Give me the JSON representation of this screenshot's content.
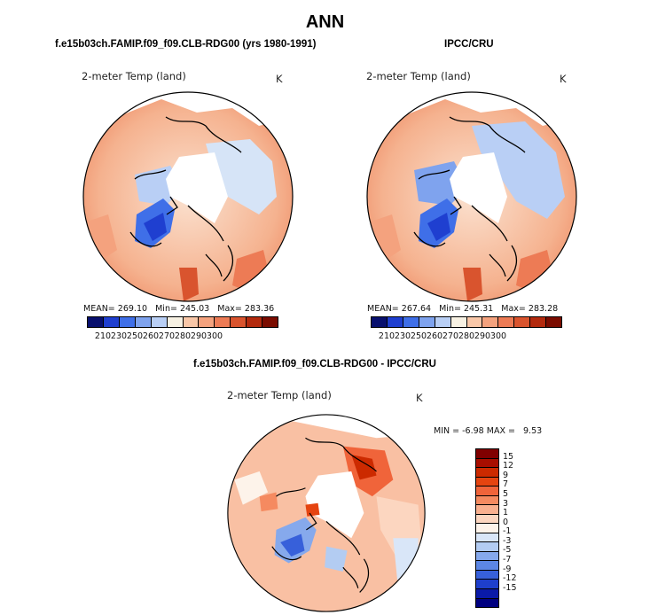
{
  "title": "ANN",
  "left_panel": {
    "case_label": "f.e15b03ch.FAMIP.f09_f09.CLB-RDG00 (yrs 1980-1991)",
    "variable": "2-meter Temp (land)",
    "units": "K",
    "stats": {
      "mean_label": "MEAN=",
      "mean": "269.10",
      "min_label": "Min=",
      "min": "245.03",
      "max_label": "Max=",
      "max": "283.36"
    }
  },
  "right_panel": {
    "case_label": "IPCC/CRU",
    "variable": "2-meter Temp (land)",
    "units": "K",
    "stats": {
      "mean_label": "MEAN=",
      "mean": "267.64",
      "min_label": "Min=",
      "min": "245.31",
      "max_label": "Max=",
      "max": "283.28"
    }
  },
  "diff_panel": {
    "case_label": "f.e15b03ch.FAMIP.f09_f09.CLB-RDG00 - IPCC/CRU",
    "variable": "2-meter Temp (land)",
    "units": "K",
    "stats": {
      "min_label": "MIN =",
      "min": "-6.98",
      "max_label": "MAX =",
      "max": "9.53"
    }
  },
  "abs_colorbar": {
    "ticks": [
      "210",
      "230",
      "250",
      "260",
      "270",
      "280",
      "290",
      "300"
    ],
    "colors": [
      "#08106e",
      "#1f3fd0",
      "#3f6fe8",
      "#7fa3ee",
      "#b9cff5",
      "#f7f1e3",
      "#f9c7a8",
      "#f4a27e",
      "#ed7b55",
      "#d9542e",
      "#b32a0e",
      "#7a0c00"
    ]
  },
  "diff_colorbar": {
    "ticks": [
      "15",
      "12",
      "9",
      "7",
      "5",
      "3",
      "1",
      "0",
      "-1",
      "-3",
      "-5",
      "-7",
      "-9",
      "-12",
      "-15"
    ],
    "colors": [
      "#800000",
      "#a80e00",
      "#cc2a00",
      "#e54410",
      "#f0643a",
      "#f58a60",
      "#f9b08f",
      "#fcd6c0",
      "#fdf3ea",
      "#d9e6f8",
      "#b3ccf2",
      "#86a9ec",
      "#5c86e4",
      "#3760da",
      "#1e3fcc",
      "#0a1aa8",
      "#000080"
    ]
  },
  "colors": {
    "land_white": "#ffffff",
    "ocean_white": "#ffffff",
    "outline": "#000000"
  }
}
